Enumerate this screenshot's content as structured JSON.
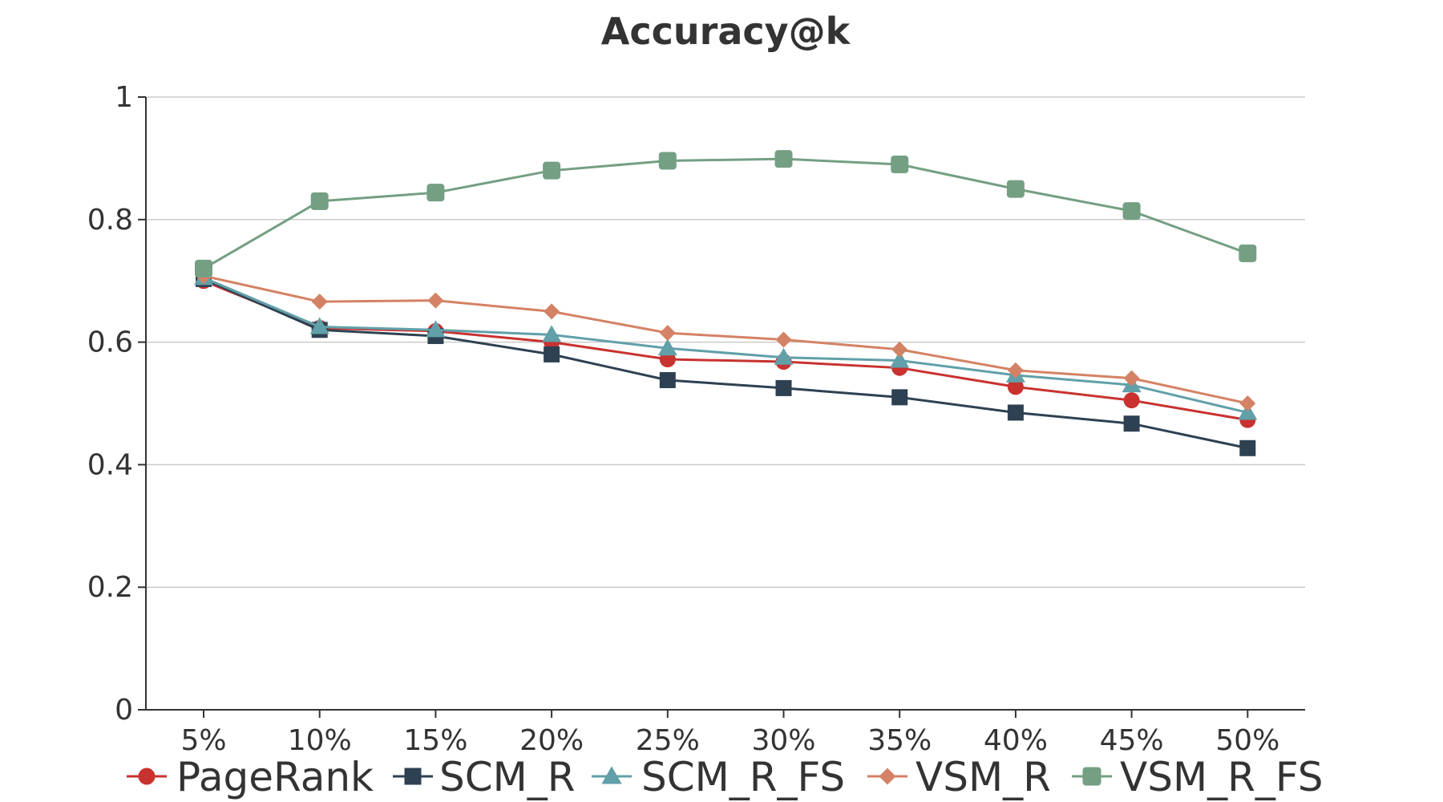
{
  "chart_data": {
    "type": "line",
    "title": "Accuracy@k",
    "xlabel": "",
    "ylabel": "",
    "categories": [
      "5%",
      "10%",
      "15%",
      "20%",
      "25%",
      "30%",
      "35%",
      "40%",
      "45%",
      "50%"
    ],
    "ylim": [
      0,
      1
    ],
    "yticks": [
      0,
      0.2,
      0.4,
      0.6,
      0.8,
      1
    ],
    "ytick_labels": [
      "0",
      "0.2",
      "0.4",
      "0.6",
      "0.8",
      "1"
    ],
    "grid": "horizontal",
    "legend_position": "bottom",
    "series": [
      {
        "name": "PageRank",
        "color": "#c8322f",
        "marker": "circle",
        "values": [
          0.7,
          0.623,
          0.618,
          0.6,
          0.572,
          0.568,
          0.558,
          0.527,
          0.505,
          0.473
        ]
      },
      {
        "name": "SCM_R",
        "color": "#2e4152",
        "marker": "square",
        "values": [
          0.703,
          0.62,
          0.61,
          0.58,
          0.538,
          0.525,
          0.51,
          0.485,
          0.467,
          0.427
        ]
      },
      {
        "name": "SCM_R_FS",
        "color": "#61a0a8",
        "marker": "triangle",
        "values": [
          0.705,
          0.625,
          0.62,
          0.612,
          0.59,
          0.575,
          0.57,
          0.546,
          0.53,
          0.485
        ]
      },
      {
        "name": "VSM_R",
        "color": "#d48265",
        "marker": "diamond",
        "values": [
          0.708,
          0.666,
          0.668,
          0.65,
          0.615,
          0.604,
          0.588,
          0.554,
          0.541,
          0.5
        ]
      },
      {
        "name": "VSM_R_FS",
        "color": "#749f83",
        "marker": "roundsquare",
        "values": [
          0.72,
          0.83,
          0.844,
          0.88,
          0.896,
          0.899,
          0.89,
          0.85,
          0.814,
          0.745
        ]
      }
    ]
  }
}
